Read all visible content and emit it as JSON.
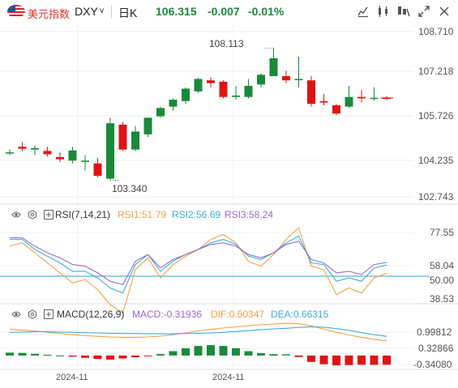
{
  "header": {
    "symbol_name": "美元指数",
    "symbol_code": "DXY",
    "caret": "∨",
    "period": "日K",
    "price": "106.315",
    "change": "-0.007",
    "change_pct": "-0.01%",
    "tools": [
      "edit-chart-icon",
      "indicator-icon",
      "draw-icon",
      "fullscreen-icon",
      "close-icon"
    ]
  },
  "main": {
    "axis": [
      "108.710",
      "107.218",
      "105.726",
      "104.235",
      "102.743"
    ],
    "high_label": "108.113",
    "low_label": "103.340"
  },
  "rsi": {
    "title": "RSI(7,14,21)",
    "rsi1": "RSI1:51.79",
    "rsi2": "RSI2:56.69",
    "rsi3": "RSI3:58.24",
    "axis": [
      "77.55",
      "58.04",
      "50.00",
      "38.53"
    ]
  },
  "macd": {
    "title": "MACD(12,26,9)",
    "macd": "MACD:-0.31936",
    "dif": "DIF:0.50347",
    "dea": "DEA:0.66315",
    "axis": [
      "0.99812",
      "0.32866",
      "-0.34080"
    ]
  },
  "xaxis": [
    "2024-11",
    "2024-11"
  ],
  "colors": {
    "up": "#1a8a3a",
    "down": "#e01414",
    "rsi1": "#f5a14a",
    "rsi2": "#3bb0d8",
    "rsi3": "#9c6ad6",
    "dif": "#f5a14a",
    "dea": "#3bb0d8",
    "ref": "#2aa6c7"
  },
  "chart_data": [
    {
      "type": "candlestick",
      "ylim": [
        102.743,
        108.71
      ],
      "high_label": 108.113,
      "low_label": 103.34,
      "candles": [
        {
          "o": 104.35,
          "h": 104.45,
          "l": 104.25,
          "c": 104.35
        },
        {
          "o": 104.55,
          "h": 104.72,
          "l": 104.4,
          "c": 104.48
        },
        {
          "o": 104.45,
          "h": 104.6,
          "l": 104.25,
          "c": 104.5
        },
        {
          "o": 104.4,
          "h": 104.55,
          "l": 104.2,
          "c": 104.28
        },
        {
          "o": 104.18,
          "h": 104.35,
          "l": 104.0,
          "c": 104.1
        },
        {
          "o": 104.05,
          "h": 104.55,
          "l": 103.95,
          "c": 104.42
        },
        {
          "o": 104.05,
          "h": 104.25,
          "l": 103.7,
          "c": 104.05
        },
        {
          "o": 103.95,
          "h": 104.15,
          "l": 103.45,
          "c": 103.5
        },
        {
          "o": 103.4,
          "h": 105.6,
          "l": 103.34,
          "c": 105.4
        },
        {
          "o": 105.35,
          "h": 105.45,
          "l": 104.4,
          "c": 104.45
        },
        {
          "o": 104.45,
          "h": 105.3,
          "l": 104.4,
          "c": 105.1
        },
        {
          "o": 105.0,
          "h": 105.6,
          "l": 104.9,
          "c": 105.6
        },
        {
          "o": 105.65,
          "h": 106.0,
          "l": 105.6,
          "c": 105.95
        },
        {
          "o": 106.0,
          "h": 106.3,
          "l": 105.85,
          "c": 106.25
        },
        {
          "o": 106.2,
          "h": 106.7,
          "l": 106.1,
          "c": 106.65
        },
        {
          "o": 106.55,
          "h": 107.05,
          "l": 106.5,
          "c": 107.0
        },
        {
          "o": 106.95,
          "h": 107.05,
          "l": 106.7,
          "c": 106.85
        },
        {
          "o": 106.9,
          "h": 106.95,
          "l": 106.3,
          "c": 106.35
        },
        {
          "o": 106.35,
          "h": 106.75,
          "l": 106.25,
          "c": 106.4
        },
        {
          "o": 106.35,
          "h": 107.0,
          "l": 106.3,
          "c": 106.75
        },
        {
          "o": 106.8,
          "h": 107.2,
          "l": 106.7,
          "c": 107.15
        },
        {
          "o": 107.1,
          "h": 108.113,
          "l": 107.1,
          "c": 107.75
        },
        {
          "o": 107.1,
          "h": 107.3,
          "l": 106.85,
          "c": 106.95
        },
        {
          "o": 107.0,
          "h": 107.8,
          "l": 106.7,
          "c": 107.0
        },
        {
          "o": 106.95,
          "h": 107.1,
          "l": 106.0,
          "c": 106.1
        },
        {
          "o": 106.2,
          "h": 106.45,
          "l": 106.05,
          "c": 106.15
        },
        {
          "o": 106.05,
          "h": 106.1,
          "l": 105.7,
          "c": 105.75
        },
        {
          "o": 106.0,
          "h": 106.75,
          "l": 105.95,
          "c": 106.35
        },
        {
          "o": 106.35,
          "h": 106.6,
          "l": 106.15,
          "c": 106.3
        },
        {
          "o": 106.3,
          "h": 106.7,
          "l": 106.2,
          "c": 106.32
        },
        {
          "o": 106.32,
          "h": 106.38,
          "l": 106.25,
          "c": 106.315
        }
      ]
    },
    {
      "type": "line",
      "title": "RSI(7,14,21)",
      "ylim": [
        35,
        82
      ],
      "reference": 50,
      "series": [
        {
          "name": "RSI1",
          "values": [
            68,
            70,
            64,
            58,
            52,
            46,
            48,
            42,
            33,
            28,
            54,
            61,
            49,
            57,
            62,
            66,
            72,
            75,
            70,
            59,
            56,
            63,
            72,
            79,
            56,
            54,
            39,
            43,
            40,
            49,
            51.79
          ]
        },
        {
          "name": "RSI2",
          "values": [
            72,
            72,
            66,
            62,
            58,
            53,
            53,
            49,
            43,
            40,
            57,
            63,
            53,
            59,
            63,
            66,
            70,
            72,
            69,
            62,
            60,
            64,
            70,
            74,
            58,
            57,
            47,
            49,
            47,
            55,
            56.69
          ]
        },
        {
          "name": "RSI3",
          "values": [
            73,
            73,
            68,
            64,
            61,
            57,
            56,
            52,
            47,
            45,
            59,
            63,
            55,
            60,
            63,
            66,
            69,
            70,
            68,
            63,
            61,
            64,
            69,
            71,
            60,
            58,
            52,
            53,
            51,
            57,
            58.24
          ]
        }
      ]
    },
    {
      "type": "bar",
      "title": "MACD(12,26,9)",
      "ylim": [
        -0.45,
        1.2
      ],
      "macd_values": [
        0.1,
        0.09,
        0.06,
        0.03,
        0.0,
        -0.04,
        -0.08,
        -0.12,
        -0.14,
        -0.1,
        -0.06,
        -0.02,
        0.05,
        0.15,
        0.25,
        0.33,
        0.36,
        0.33,
        0.25,
        0.15,
        0.08,
        0.05,
        0.04,
        -0.05,
        -0.22,
        -0.3,
        -0.34,
        -0.33,
        -0.32,
        -0.32,
        -0.31936
      ],
      "series": [
        {
          "name": "DIF",
          "values": [
            0.9,
            0.88,
            0.85,
            0.8,
            0.76,
            0.72,
            0.69,
            0.66,
            0.64,
            0.63,
            0.63,
            0.64,
            0.67,
            0.72,
            0.78,
            0.85,
            0.9,
            0.95,
            0.99,
            1.03,
            1.06,
            1.09,
            1.11,
            1.1,
            1.02,
            0.91,
            0.8,
            0.71,
            0.63,
            0.56,
            0.50347
          ]
        },
        {
          "name": "DEA",
          "values": [
            0.8,
            0.81,
            0.82,
            0.82,
            0.81,
            0.8,
            0.79,
            0.78,
            0.77,
            0.76,
            0.76,
            0.75,
            0.75,
            0.75,
            0.76,
            0.77,
            0.78,
            0.8,
            0.83,
            0.86,
            0.89,
            0.92,
            0.94,
            0.97,
            0.99,
            0.98,
            0.93,
            0.87,
            0.79,
            0.72,
            0.66315
          ]
        }
      ]
    }
  ]
}
